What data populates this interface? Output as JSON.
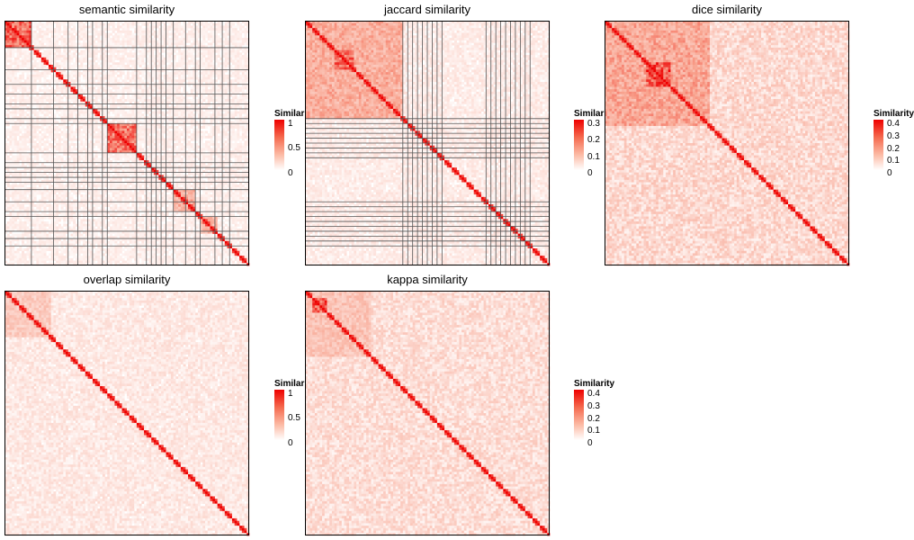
{
  "chart_data": [
    {
      "type": "heatmap",
      "title": "semantic similarity",
      "legend": {
        "title": "Similarity",
        "ticks": [
          "1",
          "0.5",
          "0"
        ],
        "min": 0,
        "max": 1
      },
      "diagonal_value": 1,
      "clusters": [
        {
          "start": 0,
          "end": 11,
          "value": 0.75
        },
        {
          "start": 42,
          "end": 54,
          "value": 0.7
        },
        {
          "start": 69,
          "end": 78,
          "value": 0.45
        },
        {
          "start": 80,
          "end": 87,
          "value": 0.4
        }
      ],
      "background_value": 0.08,
      "cluster_boundaries": [
        11,
        20,
        26,
        30,
        34,
        36,
        40,
        42,
        54,
        58,
        60,
        62,
        64,
        66,
        69,
        74,
        78,
        80,
        86,
        89,
        92
      ],
      "colors": {
        "high": "#ee0000",
        "mid": "#f8a08b",
        "low": "#ffffff"
      }
    },
    {
      "type": "heatmap",
      "title": "jaccard similarity",
      "legend": {
        "title": "Similarity",
        "ticks": [
          "0.3",
          "0.2",
          "0.1",
          "0"
        ],
        "min": 0,
        "max": 0.3
      },
      "diagonal_value": 0.3,
      "clusters": [
        {
          "start": 0,
          "end": 40,
          "value": 0.14
        },
        {
          "start": 12,
          "end": 20,
          "value": 0.22
        }
      ],
      "background_value": 0.03,
      "cluster_boundaries": [
        40,
        42,
        44,
        46,
        48,
        50,
        52,
        54,
        56,
        74,
        76,
        78,
        80,
        82,
        84,
        86,
        88,
        90,
        92
      ],
      "colors": {
        "high": "#ee0000",
        "mid": "#f8a08b",
        "low": "#ffffff"
      }
    },
    {
      "type": "heatmap",
      "title": "dice similarity",
      "legend": {
        "title": "Similarity",
        "ticks": [
          "0.4",
          "0.3",
          "0.2",
          "0.1",
          "0"
        ],
        "min": 0,
        "max": 0.4
      },
      "diagonal_value": 0.4,
      "clusters": [
        {
          "start": 0,
          "end": 43,
          "value": 0.2
        },
        {
          "start": 17,
          "end": 27,
          "value": 0.33
        }
      ],
      "background_value": 0.08,
      "cluster_boundaries": [],
      "colors": {
        "high": "#ee0000",
        "mid": "#f8a08b",
        "low": "#ffffff"
      }
    },
    {
      "type": "heatmap",
      "title": "overlap similarity",
      "legend": {
        "title": "Similarity",
        "ticks": [
          "1",
          "0.5",
          "0"
        ],
        "min": 0,
        "max": 1
      },
      "diagonal_value": 1,
      "clusters": [
        {
          "start": 0,
          "end": 19,
          "value": 0.3
        }
      ],
      "background_value": 0.12,
      "cluster_boundaries": [],
      "colors": {
        "high": "#ee0000",
        "mid": "#f8a08b",
        "low": "#ffffff"
      }
    },
    {
      "type": "heatmap",
      "title": "kappa similarity",
      "legend": {
        "title": "Similarity",
        "ticks": [
          "0.4",
          "0.3",
          "0.2",
          "0.1",
          "0"
        ],
        "min": 0,
        "max": 0.4
      },
      "diagonal_value": 0.4,
      "clusters": [
        {
          "start": 0,
          "end": 27,
          "value": 0.14
        },
        {
          "start": 3,
          "end": 9,
          "value": 0.32
        }
      ],
      "background_value": 0.07,
      "cluster_boundaries": [],
      "colors": {
        "high": "#ee0000",
        "mid": "#f8a08b",
        "low": "#ffffff"
      }
    }
  ]
}
